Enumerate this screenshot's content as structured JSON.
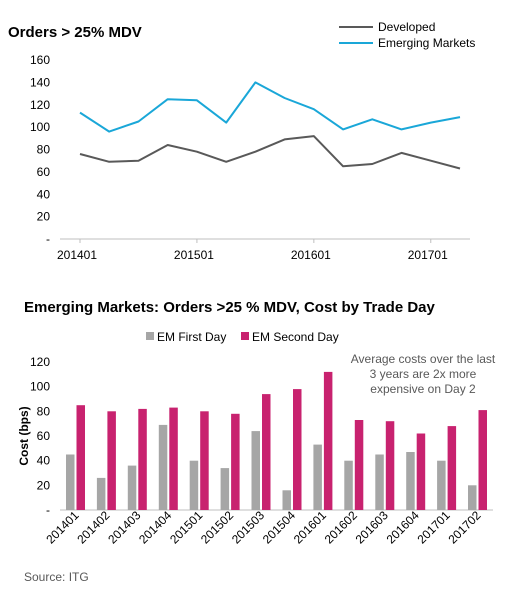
{
  "source": "Source: ITG",
  "chart_data": [
    {
      "type": "line",
      "title": "Orders > 25% MDV",
      "ylim": [
        0,
        160
      ],
      "yticks": [
        "-",
        "20",
        "40",
        "60",
        "80",
        "100",
        "120",
        "140",
        "160"
      ],
      "x_tick_labels": [
        "201401",
        "201501",
        "201601",
        "201701"
      ],
      "x_tick_index": [
        0,
        4,
        8,
        12
      ],
      "grid": false,
      "legend_position": "top-right",
      "colors": {
        "Developed": "#595959",
        "Emerging Markets": "#1aa7d8"
      },
      "series": [
        {
          "name": "Developed",
          "values": [
            76,
            69,
            70,
            84,
            78,
            69,
            78,
            89,
            92,
            65,
            67,
            77,
            70,
            63
          ]
        },
        {
          "name": "Emerging Markets",
          "values": [
            113,
            96,
            105,
            125,
            124,
            104,
            140,
            126,
            116,
            98,
            107,
            98,
            104,
            109
          ]
        }
      ]
    },
    {
      "type": "bar",
      "title": "Emerging Markets: Orders >25 % MDV, Cost by Trade Day",
      "ylabel": "Cost (bps)",
      "ylim": [
        0,
        120
      ],
      "yticks": [
        "-",
        "20",
        "40",
        "60",
        "80",
        "100",
        "120"
      ],
      "grid": false,
      "legend_position": "top",
      "categories": [
        "201401",
        "201402",
        "201403",
        "201404",
        "201501",
        "201502",
        "201503",
        "201504",
        "201601",
        "201602",
        "201603",
        "201604",
        "201701",
        "201702"
      ],
      "colors": {
        "EM First Day": "#a6a6a6",
        "EM Second Day": "#c8226f"
      },
      "series": [
        {
          "name": "EM First Day",
          "values": [
            45,
            26,
            36,
            69,
            40,
            34,
            64,
            16,
            53,
            40,
            45,
            47,
            40,
            20
          ]
        },
        {
          "name": "EM Second Day",
          "values": [
            85,
            80,
            82,
            83,
            80,
            78,
            94,
            98,
            112,
            73,
            72,
            62,
            68,
            81
          ]
        }
      ],
      "annotation": [
        "Average costs over the last",
        "3 years are 2x more",
        "expensive on Day 2"
      ]
    }
  ]
}
